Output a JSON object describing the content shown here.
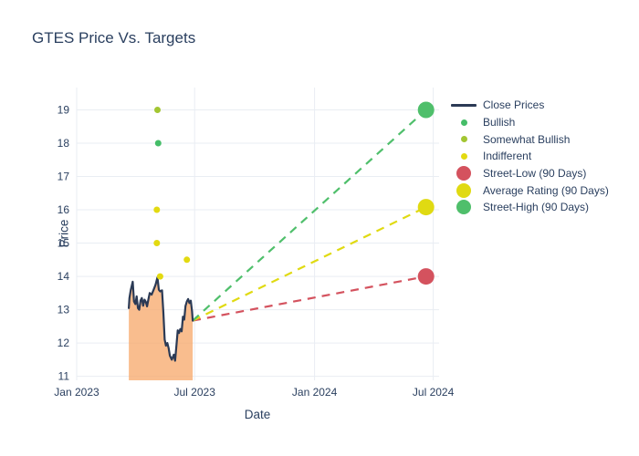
{
  "title": "GTES Price Vs. Targets",
  "legend": {
    "items": [
      {
        "label": "Close Prices",
        "marker": "line",
        "color": "#2b3a55"
      },
      {
        "label": "Bullish",
        "marker": "dot-small",
        "color": "#45bd68"
      },
      {
        "label": "Somewhat Bullish",
        "marker": "dot-small",
        "color": "#a3c632"
      },
      {
        "label": "Indifferent",
        "marker": "dot-small",
        "color": "#e3da11"
      },
      {
        "label": "Street-Low (90 Days)",
        "marker": "dot-large",
        "color": "#d4525e"
      },
      {
        "label": "Average Rating (90 Days)",
        "marker": "dot-large",
        "color": "#e0da12"
      },
      {
        "label": "Street-High (90 Days)",
        "marker": "dot-large",
        "color": "#4fbf6b"
      }
    ]
  },
  "chart_data": {
    "type": "line",
    "title": "GTES Price Vs. Targets",
    "xlabel": "Date",
    "ylabel": "Price",
    "grid": true,
    "legend_position": "right",
    "x_range": [
      "2023-01-01",
      "2024-07-10"
    ],
    "y_range": [
      10.88,
      19.67
    ],
    "x_ticks": [
      {
        "label": "Jan 2023",
        "date": "2023-01-01"
      },
      {
        "label": "Jul 2023",
        "date": "2023-07-01"
      },
      {
        "label": "Jan 2024",
        "date": "2024-01-01"
      },
      {
        "label": "Jul 2024",
        "date": "2024-07-01"
      }
    ],
    "y_ticks": [
      11,
      12,
      13,
      14,
      15,
      16,
      17,
      18,
      19
    ],
    "colors": {
      "grid": "#e9edf3",
      "text": "#2a3f5f",
      "background": "#ffffff"
    },
    "close_prices": {
      "name": "Close Prices",
      "color": "#2b3a55",
      "fill_color": "#f7a768",
      "fill_opacity": 0.75,
      "points": [
        {
          "date": "2023-03-22",
          "price": 13.05
        },
        {
          "date": "2023-03-23",
          "price": 13.35
        },
        {
          "date": "2023-03-25",
          "price": 13.6
        },
        {
          "date": "2023-03-28",
          "price": 13.84
        },
        {
          "date": "2023-03-30",
          "price": 13.25
        },
        {
          "date": "2023-04-01",
          "price": 13.17
        },
        {
          "date": "2023-04-03",
          "price": 13.4
        },
        {
          "date": "2023-04-05",
          "price": 13.05
        },
        {
          "date": "2023-04-07",
          "price": 13.0
        },
        {
          "date": "2023-04-09",
          "price": 13.28
        },
        {
          "date": "2023-04-11",
          "price": 13.35
        },
        {
          "date": "2023-04-13",
          "price": 13.12
        },
        {
          "date": "2023-04-15",
          "price": 13.3
        },
        {
          "date": "2023-04-17",
          "price": 13.24
        },
        {
          "date": "2023-04-19",
          "price": 13.1
        },
        {
          "date": "2023-04-21",
          "price": 13.3
        },
        {
          "date": "2023-04-23",
          "price": 13.5
        },
        {
          "date": "2023-04-26",
          "price": 13.45
        },
        {
          "date": "2023-04-29",
          "price": 13.6
        },
        {
          "date": "2023-05-02",
          "price": 13.75
        },
        {
          "date": "2023-05-05",
          "price": 13.97
        },
        {
          "date": "2023-05-07",
          "price": 13.6
        },
        {
          "date": "2023-05-09",
          "price": 13.55
        },
        {
          "date": "2023-05-12",
          "price": 13.58
        },
        {
          "date": "2023-05-14",
          "price": 12.9
        },
        {
          "date": "2023-05-16",
          "price": 12.1
        },
        {
          "date": "2023-05-18",
          "price": 11.92
        },
        {
          "date": "2023-05-20",
          "price": 12.0
        },
        {
          "date": "2023-05-22",
          "price": 11.85
        },
        {
          "date": "2023-05-24",
          "price": 11.62
        },
        {
          "date": "2023-05-27",
          "price": 11.5
        },
        {
          "date": "2023-05-30",
          "price": 11.65
        },
        {
          "date": "2023-06-01",
          "price": 11.47
        },
        {
          "date": "2023-06-03",
          "price": 11.9
        },
        {
          "date": "2023-06-05",
          "price": 12.38
        },
        {
          "date": "2023-06-07",
          "price": 12.3
        },
        {
          "date": "2023-06-09",
          "price": 12.42
        },
        {
          "date": "2023-06-11",
          "price": 12.35
        },
        {
          "date": "2023-06-13",
          "price": 12.79
        },
        {
          "date": "2023-06-15",
          "price": 12.7
        },
        {
          "date": "2023-06-17",
          "price": 13.11
        },
        {
          "date": "2023-06-19",
          "price": 13.25
        },
        {
          "date": "2023-06-21",
          "price": 13.32
        },
        {
          "date": "2023-06-23",
          "price": 13.2
        },
        {
          "date": "2023-06-25",
          "price": 13.27
        },
        {
          "date": "2023-06-27",
          "price": 12.95
        },
        {
          "date": "2023-06-28",
          "price": 12.67
        }
      ]
    },
    "rating_colors": {
      "Bullish": "#45bd68",
      "Somewhat Bullish": "#a3c632",
      "Indifferent": "#e3da11"
    },
    "ratings": [
      {
        "date": "2023-05-05",
        "price": 19.0,
        "rating": "Somewhat Bullish"
      },
      {
        "date": "2023-05-06",
        "price": 18.0,
        "rating": "Bullish"
      },
      {
        "date": "2023-05-04",
        "price": 16.0,
        "rating": "Indifferent"
      },
      {
        "date": "2023-05-04",
        "price": 15.0,
        "rating": "Indifferent"
      },
      {
        "date": "2023-05-09",
        "price": 14.0,
        "rating": "Indifferent"
      },
      {
        "date": "2023-06-19",
        "price": 14.5,
        "rating": "Indifferent"
      }
    ],
    "targets": {
      "date": "2024-06-20",
      "anchor": {
        "date": "2023-06-28",
        "price": 12.67
      },
      "items": [
        {
          "label": "Street-Low (90 Days)",
          "price": 14.0,
          "color": "#d4525e"
        },
        {
          "label": "Average Rating (90 Days)",
          "price": 16.08,
          "color": "#e0da12"
        },
        {
          "label": "Street-High (90 Days)",
          "price": 19.0,
          "color": "#4fbf6b"
        }
      ]
    }
  }
}
